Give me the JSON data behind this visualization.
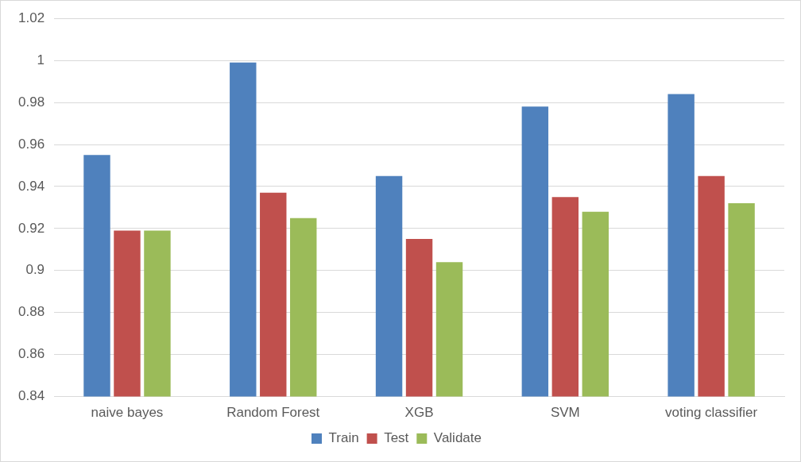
{
  "chart_data": {
    "type": "bar",
    "categories": [
      "naive bayes",
      "Random Forest",
      "XGB",
      "SVM",
      "voting classifier"
    ],
    "series": [
      {
        "name": "Train",
        "color": "#4f81bd",
        "values": [
          0.955,
          0.999,
          0.945,
          0.978,
          0.984
        ]
      },
      {
        "name": "Test",
        "color": "#c0504d",
        "values": [
          0.919,
          0.937,
          0.915,
          0.935,
          0.945
        ]
      },
      {
        "name": "Validate",
        "color": "#9bbb59",
        "values": [
          0.919,
          0.925,
          0.904,
          0.928,
          0.932
        ]
      }
    ],
    "ylim": [
      0.84,
      1.02
    ],
    "yticks": [
      0.84,
      0.86,
      0.88,
      0.9,
      0.92,
      0.94,
      0.96,
      0.98,
      1,
      1.02
    ],
    "grid": "y",
    "legend": "bottom"
  }
}
